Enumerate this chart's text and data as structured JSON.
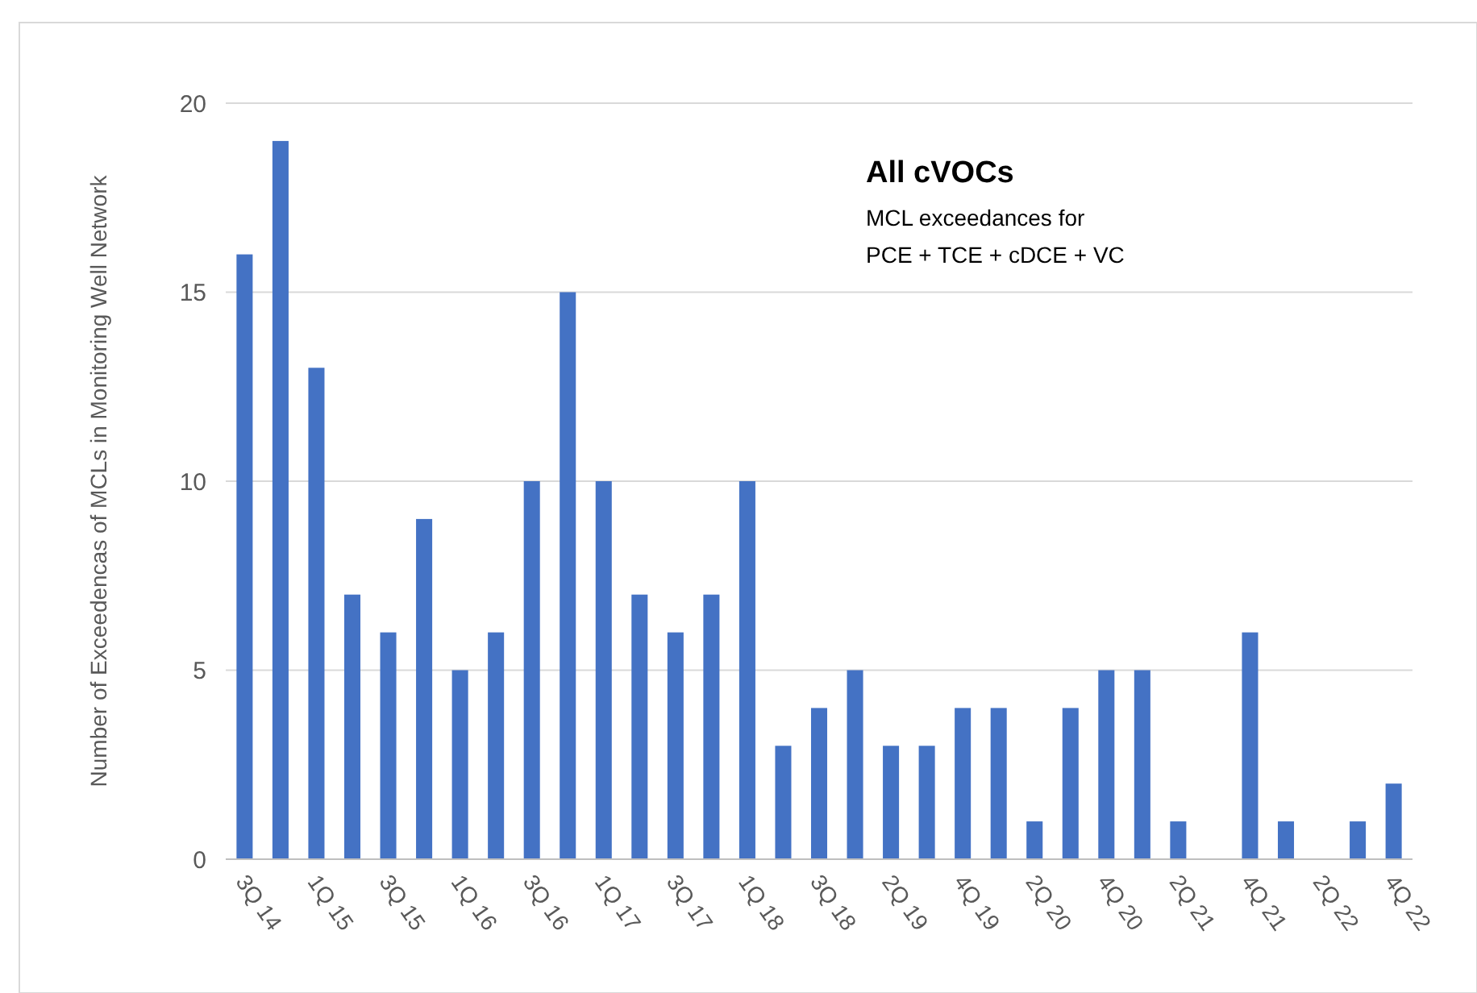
{
  "chart_data": {
    "type": "bar",
    "title": "All cVOCs",
    "subtitle": "MCL exceedances for\nPCE + TCE + cDCE + VC",
    "ylabel": "Number of Exceedencas of MCLs in Monitoring Well Network",
    "categories": [
      "3Q 14",
      null,
      "1Q 15",
      null,
      "3Q 15",
      null,
      "1Q 16",
      null,
      "3Q 16",
      null,
      "1Q 17",
      null,
      "3Q 17",
      null,
      "1Q 18",
      null,
      "3Q 18",
      null,
      "2Q 19",
      null,
      "4Q 19",
      null,
      "2Q 20",
      null,
      "4Q 20",
      null,
      "2Q 21",
      null,
      "4Q 21",
      null,
      "2Q 22",
      null,
      "4Q 22"
    ],
    "values": [
      16,
      19,
      13,
      7,
      6,
      9,
      5,
      6,
      10,
      15,
      10,
      7,
      6,
      7,
      10,
      3,
      4,
      5,
      3,
      3,
      4,
      4,
      1,
      4,
      5,
      5,
      1,
      0,
      6,
      1,
      0,
      1,
      2
    ],
    "color": "#4472c4",
    "ylim": [
      0,
      20
    ],
    "yticks": [
      0,
      5,
      10,
      15,
      20
    ],
    "grid": "y"
  }
}
